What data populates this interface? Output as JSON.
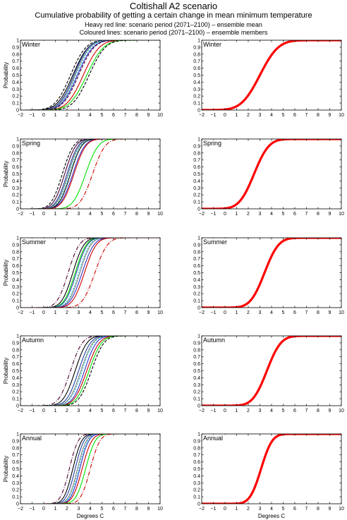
{
  "figure": {
    "title": "Coltishall A2 scenario",
    "subtitle": "Cumulative probability of getting a certain change in mean minimum temperature",
    "note_heavy": "Heavy red line: scenario period (2071–2100) – ensemble mean",
    "note_coloured": "Coloured lines: scenario period (2071–2100) – ensemble members"
  },
  "colors": {
    "ensemble_mean": "#ff0000",
    "axes": "#000000",
    "background": "#ffffff"
  },
  "chart_data": [
    {
      "type": "line",
      "panel": "Winter ensemble members",
      "label": "Winter",
      "xlabel": "",
      "ylabel": "Probability",
      "xlim": [
        -2,
        10
      ],
      "ylim": [
        0,
        1
      ],
      "xticks": [
        "−2",
        "−1",
        "0",
        "1",
        "2",
        "3",
        "4",
        "5",
        "6",
        "7",
        "8",
        "9",
        "10"
      ],
      "yticks": [
        "0",
        "0.1",
        "0.2",
        "0.3",
        "0.4",
        "0.5",
        "0.6",
        "0.7",
        "0.8",
        "0.9",
        "1"
      ],
      "grid": false,
      "series": [
        {
          "color": "#000000",
          "dash": "4 2",
          "mean": 2.3,
          "sd": 1.05
        },
        {
          "color": "#000000",
          "dash": "",
          "mean": 2.5,
          "sd": 1.05
        },
        {
          "color": "#1f3fa0",
          "dash": "",
          "mean": 2.6,
          "sd": 1.0
        },
        {
          "color": "#7f7f7f",
          "dash": "",
          "mean": 2.7,
          "sd": 1.0
        },
        {
          "color": "#00c8c8",
          "dash": "2 2",
          "mean": 2.8,
          "sd": 1.0
        },
        {
          "color": "#3333cc",
          "dash": "",
          "mean": 2.9,
          "sd": 1.05
        },
        {
          "color": "#4b0030",
          "dash": "4 2",
          "mean": 3.0,
          "sd": 1.05
        },
        {
          "color": "#cc0000",
          "dash": "",
          "mean": 3.4,
          "sd": 1.1
        },
        {
          "color": "#00e000",
          "dash": "",
          "mean": 3.7,
          "sd": 1.15
        },
        {
          "color": "#000000",
          "dash": "4 2",
          "mean": 3.9,
          "sd": 1.1
        }
      ]
    },
    {
      "type": "line",
      "panel": "Winter ensemble mean",
      "label": "Winter",
      "xlabel": "",
      "ylabel": "",
      "xlim": [
        -2,
        10
      ],
      "ylim": [
        0,
        1
      ],
      "xticks": [
        "−2",
        "−1",
        "0",
        "1",
        "2",
        "3",
        "4",
        "5",
        "6",
        "7",
        "8",
        "9",
        "10"
      ],
      "yticks": [
        "0",
        "0.1",
        "0.2",
        "0.3",
        "0.4",
        "0.5",
        "0.6",
        "0.7",
        "0.8",
        "0.9",
        "1"
      ],
      "grid": false,
      "series": [
        {
          "color": "#ff0000",
          "dash": "",
          "heavy": true,
          "mean": 3.0,
          "sd": 1.25
        }
      ]
    },
    {
      "type": "line",
      "panel": "Spring ensemble members",
      "label": "Spring",
      "xlabel": "",
      "ylabel": "Probability",
      "xlim": [
        -2,
        10
      ],
      "ylim": [
        0,
        1
      ],
      "xticks": [
        "−2",
        "−1",
        "0",
        "1",
        "2",
        "3",
        "4",
        "5",
        "6",
        "7",
        "8",
        "9",
        "10"
      ],
      "yticks": [
        "0",
        "0.1",
        "0.2",
        "0.3",
        "0.4",
        "0.5",
        "0.6",
        "0.7",
        "0.8",
        "0.9",
        "1"
      ],
      "grid": false,
      "series": [
        {
          "color": "#000000",
          "dash": "4 2",
          "mean": 1.6,
          "sd": 0.75
        },
        {
          "color": "#4b0030",
          "dash": "",
          "mean": 1.8,
          "sd": 0.75
        },
        {
          "color": "#1f3fa0",
          "dash": "",
          "mean": 2.0,
          "sd": 0.75
        },
        {
          "color": "#7f7f7f",
          "dash": "",
          "mean": 2.1,
          "sd": 0.75
        },
        {
          "color": "#00c8c8",
          "dash": "2 2",
          "mean": 2.2,
          "sd": 0.75
        },
        {
          "color": "#000000",
          "dash": "",
          "mean": 2.3,
          "sd": 0.75
        },
        {
          "color": "#3333cc",
          "dash": "",
          "mean": 2.5,
          "sd": 0.8
        },
        {
          "color": "#cc0000",
          "dash": "",
          "mean": 2.6,
          "sd": 0.8
        },
        {
          "color": "#00e000",
          "dash": "",
          "mean": 3.6,
          "sd": 0.85
        },
        {
          "color": "#cc0000",
          "dash": "6 2 1 2",
          "mean": 4.2,
          "sd": 0.85
        }
      ]
    },
    {
      "type": "line",
      "panel": "Spring ensemble mean",
      "label": "Spring",
      "xlabel": "",
      "ylabel": "",
      "xlim": [
        -2,
        10
      ],
      "ylim": [
        0,
        1
      ],
      "xticks": [
        "−2",
        "−1",
        "0",
        "1",
        "2",
        "3",
        "4",
        "5",
        "6",
        "7",
        "8",
        "9",
        "10"
      ],
      "yticks": [
        "0",
        "0.1",
        "0.2",
        "0.3",
        "0.4",
        "0.5",
        "0.6",
        "0.7",
        "0.8",
        "0.9",
        "1"
      ],
      "grid": false,
      "series": [
        {
          "color": "#ff0000",
          "dash": "",
          "heavy": true,
          "mean": 2.5,
          "sd": 1.0
        }
      ]
    },
    {
      "type": "line",
      "panel": "Summer ensemble members",
      "label": "Summer",
      "xlabel": "",
      "ylabel": "Probability",
      "xlim": [
        -2,
        10
      ],
      "ylim": [
        0,
        1
      ],
      "xticks": [
        "−2",
        "−1",
        "0",
        "1",
        "2",
        "3",
        "4",
        "5",
        "6",
        "7",
        "8",
        "9",
        "10"
      ],
      "yticks": [
        "0",
        "0.1",
        "0.2",
        "0.3",
        "0.4",
        "0.5",
        "0.6",
        "0.7",
        "0.8",
        "0.9",
        "1"
      ],
      "grid": false,
      "series": [
        {
          "color": "#4b0030",
          "dash": "6 2 1 2",
          "mean": 2.1,
          "sd": 0.75
        },
        {
          "color": "#000000",
          "dash": "",
          "mean": 2.5,
          "sd": 0.75
        },
        {
          "color": "#00e000",
          "dash": "",
          "mean": 2.7,
          "sd": 0.75
        },
        {
          "color": "#1f3fa0",
          "dash": "",
          "mean": 2.8,
          "sd": 0.75
        },
        {
          "color": "#00c8c8",
          "dash": "2 2",
          "mean": 3.0,
          "sd": 0.75
        },
        {
          "color": "#7f7f7f",
          "dash": "",
          "mean": 3.1,
          "sd": 0.75
        },
        {
          "color": "#3333cc",
          "dash": "",
          "mean": 3.3,
          "sd": 0.8
        },
        {
          "color": "#cc0000",
          "dash": "",
          "mean": 3.5,
          "sd": 0.8
        },
        {
          "color": "#cc0000",
          "dash": "6 2 1 2",
          "mean": 4.4,
          "sd": 0.85
        }
      ]
    },
    {
      "type": "line",
      "panel": "Summer ensemble mean",
      "label": "Summer",
      "xlabel": "",
      "ylabel": "",
      "xlim": [
        -2,
        10
      ],
      "ylim": [
        0,
        1
      ],
      "xticks": [
        "−2",
        "−1",
        "0",
        "1",
        "2",
        "3",
        "4",
        "5",
        "6",
        "7",
        "8",
        "9",
        "10"
      ],
      "yticks": [
        "0",
        "0.1",
        "0.2",
        "0.3",
        "0.4",
        "0.5",
        "0.6",
        "0.7",
        "0.8",
        "0.9",
        "1"
      ],
      "grid": false,
      "series": [
        {
          "color": "#ff0000",
          "dash": "",
          "heavy": true,
          "mean": 3.4,
          "sd": 0.95
        }
      ]
    },
    {
      "type": "line",
      "panel": "Autumn ensemble members",
      "label": "Autumn",
      "xlabel": "",
      "ylabel": "Probability",
      "xlim": [
        -2,
        10
      ],
      "ylim": [
        0,
        1
      ],
      "xticks": [
        "−2",
        "−1",
        "0",
        "1",
        "2",
        "3",
        "4",
        "5",
        "6",
        "7",
        "8",
        "9",
        "10"
      ],
      "yticks": [
        "0",
        "0.1",
        "0.2",
        "0.3",
        "0.4",
        "0.5",
        "0.6",
        "0.7",
        "0.8",
        "0.9",
        "1"
      ],
      "grid": false,
      "series": [
        {
          "color": "#4b0030",
          "dash": "6 2 1 2",
          "mean": 2.3,
          "sd": 0.8
        },
        {
          "color": "#000000",
          "dash": "",
          "mean": 2.7,
          "sd": 0.8
        },
        {
          "color": "#1f3fa0",
          "dash": "",
          "mean": 3.0,
          "sd": 0.8
        },
        {
          "color": "#7f7f7f",
          "dash": "",
          "mean": 3.2,
          "sd": 0.8
        },
        {
          "color": "#00c8c8",
          "dash": "2 2",
          "mean": 3.3,
          "sd": 0.8
        },
        {
          "color": "#3333cc",
          "dash": "",
          "mean": 3.5,
          "sd": 0.8
        },
        {
          "color": "#cc0000",
          "dash": "",
          "mean": 3.7,
          "sd": 0.85
        },
        {
          "color": "#00e000",
          "dash": "",
          "mean": 3.9,
          "sd": 0.85
        },
        {
          "color": "#000000",
          "dash": "4 2",
          "mean": 4.1,
          "sd": 0.85
        }
      ]
    },
    {
      "type": "line",
      "panel": "Autumn ensemble mean",
      "label": "Autumn",
      "xlabel": "",
      "ylabel": "",
      "xlim": [
        -2,
        10
      ],
      "ylim": [
        0,
        1
      ],
      "xticks": [
        "−2",
        "−1",
        "0",
        "1",
        "2",
        "3",
        "4",
        "5",
        "6",
        "7",
        "8",
        "9",
        "10"
      ],
      "yticks": [
        "0",
        "0.1",
        "0.2",
        "0.3",
        "0.4",
        "0.5",
        "0.6",
        "0.7",
        "0.8",
        "0.9",
        "1"
      ],
      "grid": false,
      "series": [
        {
          "color": "#ff0000",
          "dash": "",
          "heavy": true,
          "mean": 3.6,
          "sd": 0.95
        }
      ]
    },
    {
      "type": "line",
      "panel": "Annual ensemble members",
      "label": "Annual",
      "xlabel": "Degrees C",
      "ylabel": "Probability",
      "xlim": [
        -2,
        10
      ],
      "ylim": [
        0,
        1
      ],
      "xticks": [
        "−2",
        "−1",
        "0",
        "1",
        "2",
        "3",
        "4",
        "5",
        "6",
        "7",
        "8",
        "9",
        "10"
      ],
      "yticks": [
        "0",
        "0.1",
        "0.2",
        "0.3",
        "0.4",
        "0.5",
        "0.6",
        "0.7",
        "0.8",
        "0.9",
        "1"
      ],
      "grid": false,
      "series": [
        {
          "color": "#4b0030",
          "dash": "6 2 1 2",
          "mean": 2.2,
          "sd": 0.6
        },
        {
          "color": "#000000",
          "dash": "",
          "mean": 2.5,
          "sd": 0.6
        },
        {
          "color": "#1f3fa0",
          "dash": "",
          "mean": 2.7,
          "sd": 0.6
        },
        {
          "color": "#7f7f7f",
          "dash": "",
          "mean": 2.9,
          "sd": 0.6
        },
        {
          "color": "#00c8c8",
          "dash": "2 2",
          "mean": 3.0,
          "sd": 0.6
        },
        {
          "color": "#3333cc",
          "dash": "",
          "mean": 3.1,
          "sd": 0.6
        },
        {
          "color": "#cc0000",
          "dash": "",
          "mean": 3.3,
          "sd": 0.65
        },
        {
          "color": "#00e000",
          "dash": "",
          "mean": 3.6,
          "sd": 0.65
        },
        {
          "color": "#cc0000",
          "dash": "6 2 1 2",
          "mean": 4.0,
          "sd": 0.65
        }
      ]
    },
    {
      "type": "line",
      "panel": "Annual ensemble mean",
      "label": "Annual",
      "xlabel": "Degrees C",
      "ylabel": "",
      "xlim": [
        -2,
        10
      ],
      "ylim": [
        0,
        1
      ],
      "xticks": [
        "−2",
        "−1",
        "0",
        "1",
        "2",
        "3",
        "4",
        "5",
        "6",
        "7",
        "8",
        "9",
        "10"
      ],
      "yticks": [
        "0",
        "0.1",
        "0.2",
        "0.3",
        "0.4",
        "0.5",
        "0.6",
        "0.7",
        "0.8",
        "0.9",
        "1"
      ],
      "grid": false,
      "series": [
        {
          "color": "#ff0000",
          "dash": "",
          "heavy": true,
          "mean": 3.1,
          "sd": 0.75
        }
      ]
    }
  ]
}
